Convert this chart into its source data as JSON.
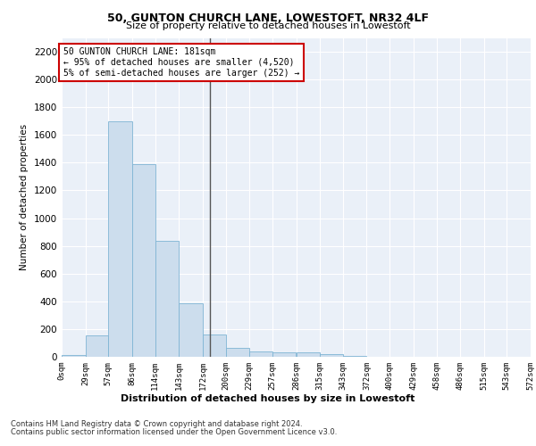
{
  "title1": "50, GUNTON CHURCH LANE, LOWESTOFT, NR32 4LF",
  "title2": "Size of property relative to detached houses in Lowestoft",
  "xlabel": "Distribution of detached houses by size in Lowestoft",
  "ylabel": "Number of detached properties",
  "bar_color": "#ccdded",
  "bar_edge_color": "#7fb4d4",
  "bin_edges": [
    0,
    29,
    57,
    86,
    114,
    143,
    172,
    200,
    229,
    257,
    286,
    315,
    343,
    372,
    400,
    429,
    458,
    486,
    515,
    543,
    572
  ],
  "bar_heights": [
    15,
    155,
    1700,
    1390,
    835,
    385,
    160,
    65,
    40,
    30,
    30,
    20,
    5,
    0,
    0,
    0,
    0,
    0,
    0,
    0
  ],
  "tick_labels": [
    "0sqm",
    "29sqm",
    "57sqm",
    "86sqm",
    "114sqm",
    "143sqm",
    "172sqm",
    "200sqm",
    "229sqm",
    "257sqm",
    "286sqm",
    "315sqm",
    "343sqm",
    "372sqm",
    "400sqm",
    "429sqm",
    "458sqm",
    "486sqm",
    "515sqm",
    "543sqm",
    "572sqm"
  ],
  "vline_x": 181,
  "vline_color": "#555555",
  "annotation_line1": "50 GUNTON CHURCH LANE: 181sqm",
  "annotation_line2": "← 95% of detached houses are smaller (4,520)",
  "annotation_line3": "5% of semi-detached houses are larger (252) →",
  "annotation_box_color": "#ffffff",
  "annotation_border_color": "#cc0000",
  "ylim": [
    0,
    2300
  ],
  "yticks": [
    0,
    200,
    400,
    600,
    800,
    1000,
    1200,
    1400,
    1600,
    1800,
    2000,
    2200
  ],
  "background_color": "#eaf0f8",
  "footer1": "Contains HM Land Registry data © Crown copyright and database right 2024.",
  "footer2": "Contains public sector information licensed under the Open Government Licence v3.0."
}
